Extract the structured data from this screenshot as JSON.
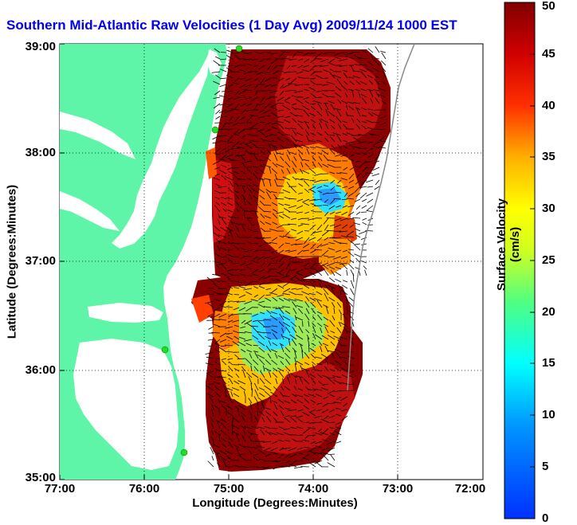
{
  "title": "Southern Mid-Atlantic Raw Velocities (1 Day Avg) 2009/11/24 1000 EST",
  "xlabel": "Longitude (Degrees:Minutes)",
  "ylabel": "Latitude (Degrees:Minutes)",
  "colorbar": {
    "label": "Surface Velocity (cm/s)",
    "min": 0,
    "max": 50,
    "ticks": [
      "0",
      "5",
      "10",
      "15",
      "20",
      "25",
      "30",
      "35",
      "40",
      "45",
      "50"
    ]
  },
  "x_ticks": [
    "77:00",
    "76:00",
    "75:00",
    "74:00",
    "73:00",
    "72:00"
  ],
  "y_ticks": [
    "39:00",
    "38:00",
    "37:00",
    "36:00",
    "35:00"
  ],
  "x_range": [
    -77,
    -72
  ],
  "y_range": [
    35,
    39
  ],
  "grid": "dotted",
  "colors": {
    "land": "#5ef5a8",
    "title": "#0000ee",
    "station": "#22dd22"
  }
}
